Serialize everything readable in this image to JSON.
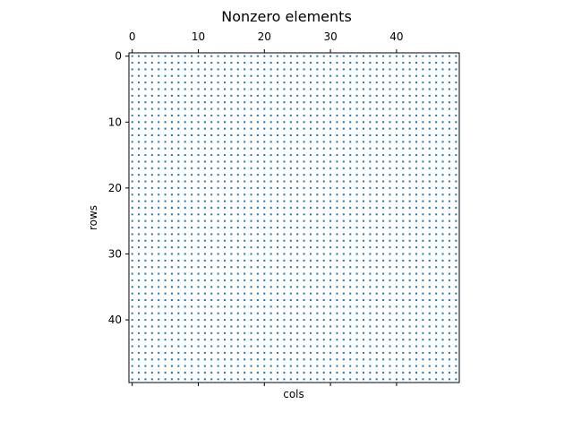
{
  "chart_data": {
    "type": "scatter",
    "title": "Nonzero elements",
    "xlabel": "cols",
    "ylabel": "rows",
    "n_rows": 50,
    "n_cols": 50,
    "nonzero": "all",
    "xlim": [
      -0.5,
      49.5
    ],
    "ylim": [
      49.5,
      -0.5
    ],
    "x_ticks": [
      0,
      10,
      20,
      30,
      40
    ],
    "y_ticks": [
      0,
      10,
      20,
      30,
      40
    ],
    "x_tick_position": "top",
    "grid": false,
    "marker_color": "#1f77b4"
  }
}
